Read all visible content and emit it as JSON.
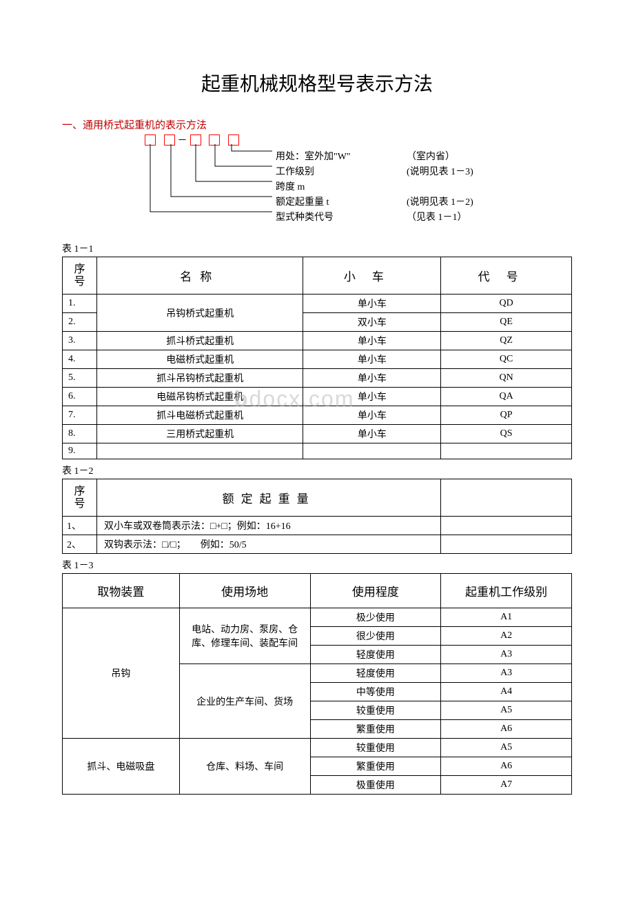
{
  "title": "起重机械规格型号表示方法",
  "section1_heading": "一、通用桥式起重机的表示方法",
  "diagram": {
    "labels": [
      {
        "text": "用处：室外加\"W\"",
        "note": "（室内省）"
      },
      {
        "text": "工作级别",
        "note": "(说明见表 1－3)"
      },
      {
        "text": "跨度 m",
        "note": ""
      },
      {
        "text": "额定起重量 t",
        "note": "(说明见表 1－2)"
      },
      {
        "text": "型式种类代号",
        "note": "（见表 1－1）"
      }
    ]
  },
  "table1": {
    "caption": "表 1－1",
    "headers": {
      "seq": "序号",
      "name": "名称",
      "car": "小车",
      "code": "代号"
    },
    "rows": [
      {
        "seq": "1.",
        "name": "吊钩桥式起重机",
        "name_rowspan": 2,
        "car": "单小车",
        "code": "QD"
      },
      {
        "seq": "2.",
        "car": "双小车",
        "code": "QE"
      },
      {
        "seq": "3.",
        "name": "抓斗桥式起重机",
        "car": "单小车",
        "code": "QZ"
      },
      {
        "seq": "4.",
        "name": "电磁桥式起重机",
        "car": "单小车",
        "code": "QC"
      },
      {
        "seq": "5.",
        "name": "抓斗吊钩桥式起重机",
        "car": "单小车",
        "code": "QN"
      },
      {
        "seq": "6.",
        "name": "电磁吊钩桥式起重机",
        "car": "单小车",
        "code": "QA"
      },
      {
        "seq": "7.",
        "name": "抓斗电磁桥式起重机",
        "car": "单小车",
        "code": "QP"
      },
      {
        "seq": "8.",
        "name": "三用桥式起重机",
        "car": "单小车",
        "code": "QS"
      },
      {
        "seq": "9.",
        "name": "",
        "car": "",
        "code": ""
      }
    ]
  },
  "table2": {
    "caption": "表 1－2",
    "headers": {
      "seq": "序号",
      "cap": "额定起重量"
    },
    "rows": [
      {
        "seq": "1、",
        "text": "双小车或双卷筒表示法：□+□；例如：16+16"
      },
      {
        "seq": "2、",
        "text": "双钩表示法：□/□；　　例如：50/5"
      }
    ]
  },
  "table3": {
    "caption": "表 1－3",
    "headers": {
      "c1": "取物装置",
      "c2": "使用场地",
      "c3": "使用程度",
      "c4": "起重机工作级别"
    },
    "rows": [
      {
        "c1": "吊钩",
        "c1_rowspan": 7,
        "c2": "电站、动力房、泵房、仓库、修理车间、装配车间",
        "c2_rowspan": 3,
        "c3": "极少使用",
        "c4": "A1"
      },
      {
        "c3": "很少使用",
        "c4": "A2"
      },
      {
        "c3": "轻度使用",
        "c4": "A3"
      },
      {
        "c2": "企业的生产车间、货场",
        "c2_rowspan": 4,
        "c3": "轻度使用",
        "c4": "A3"
      },
      {
        "c3": "中等使用",
        "c4": "A4"
      },
      {
        "c3": "较重使用",
        "c4": "A5"
      },
      {
        "c3": "繁重使用",
        "c4": "A6"
      },
      {
        "c1": "抓斗、电磁吸盘",
        "c1_rowspan": 3,
        "c2": "仓库、料场、车间",
        "c2_rowspan": 3,
        "c3": "较重使用",
        "c4": "A5"
      },
      {
        "c3": "繁重使用",
        "c4": "A6"
      },
      {
        "c3": "极重使用",
        "c4": "A7"
      }
    ]
  },
  "watermark": "bdocx.com"
}
